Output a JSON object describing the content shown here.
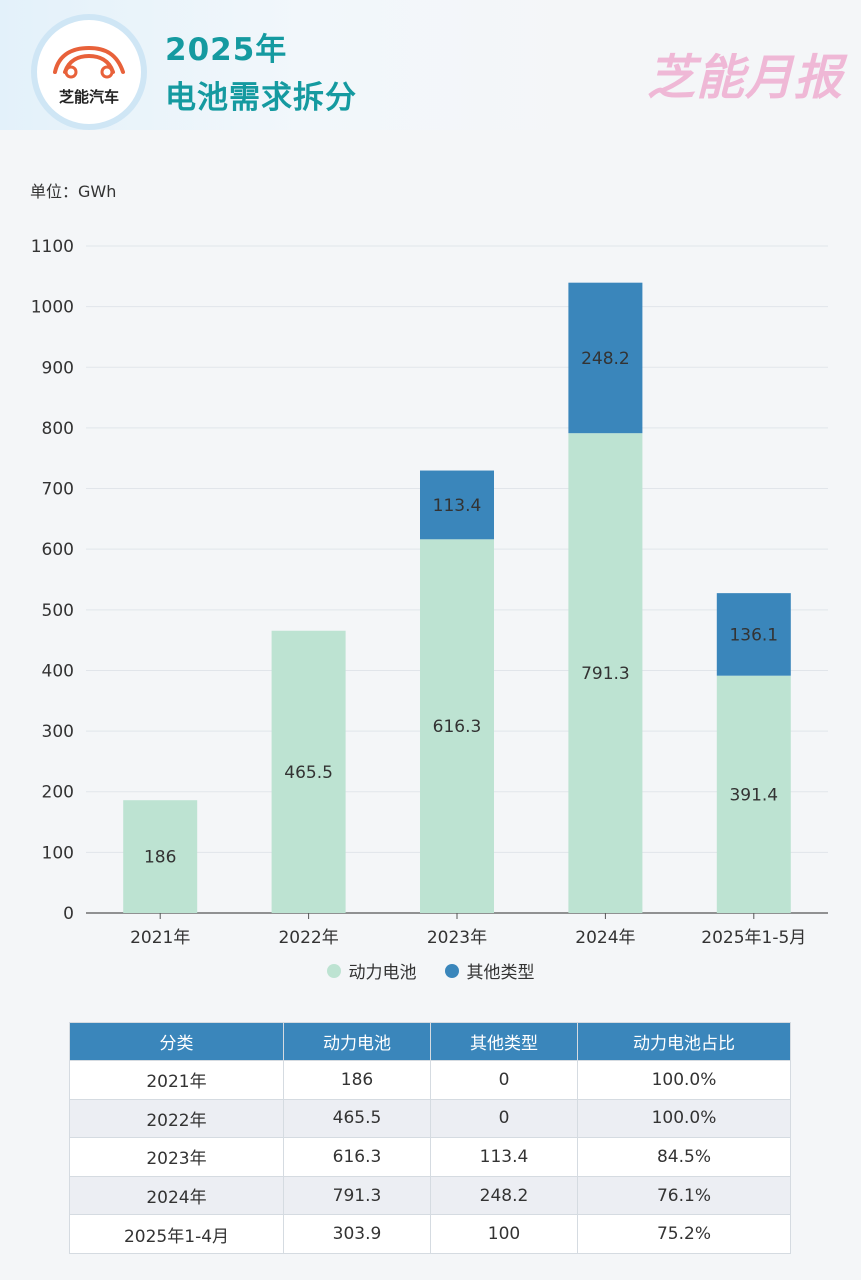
{
  "header": {
    "logo_text": "芝能汽车",
    "title_line1": "2025年",
    "title_line2": "电池需求拆分",
    "brand": "芝能月报"
  },
  "unit_label": "单位：GWh",
  "colors": {
    "power": "#bde3d2",
    "other": "#3a86bb",
    "title": "#159aa0"
  },
  "chart_data": {
    "type": "bar",
    "stacked": true,
    "categories": [
      "2021年",
      "2022年",
      "2023年",
      "2024年",
      "2025年1-5月"
    ],
    "series": [
      {
        "name": "动力电池",
        "values": [
          186,
          465.5,
          616.3,
          791.3,
          391.4
        ]
      },
      {
        "name": "其他类型",
        "values": [
          0,
          0,
          113.4,
          248.2,
          136.1
        ]
      }
    ],
    "ylim": [
      0,
      1100
    ],
    "yticks": [
      0,
      100,
      200,
      300,
      400,
      500,
      600,
      700,
      800,
      900,
      1000,
      1100
    ],
    "ylabel": "单位：GWh",
    "grid": true,
    "legend": "bottom"
  },
  "table": {
    "headers": [
      "分类",
      "动力电池",
      "其他类型",
      "动力电池占比"
    ],
    "rows": [
      [
        "2021年",
        "186",
        "0",
        "100.0%"
      ],
      [
        "2022年",
        "465.5",
        "0",
        "100.0%"
      ],
      [
        "2023年",
        "616.3",
        "113.4",
        "84.5%"
      ],
      [
        "2024年",
        "791.3",
        "248.2",
        "76.1%"
      ],
      [
        "2025年1-4月",
        "303.9",
        "100",
        "75.2%"
      ]
    ]
  }
}
